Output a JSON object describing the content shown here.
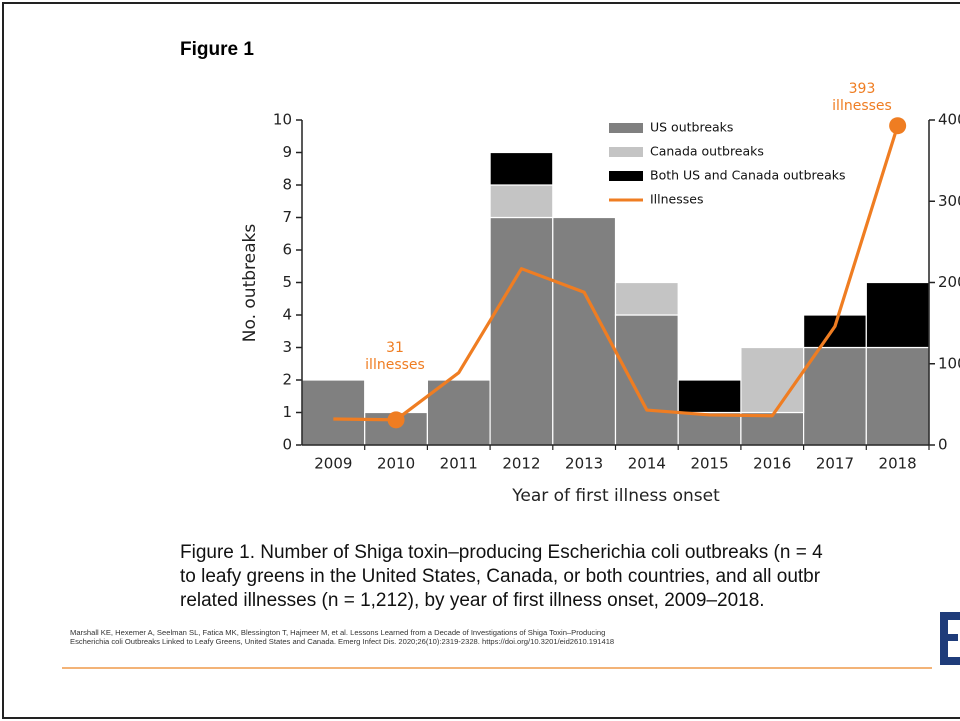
{
  "figure_label": "Figure 1",
  "chart_data": {
    "type": "bar",
    "stacked": true,
    "xlabel": "Year of first illness onset",
    "ylabel": "No. outbreaks",
    "categories": [
      "2009",
      "2010",
      "2011",
      "2012",
      "2013",
      "2014",
      "2015",
      "2016",
      "2017",
      "2018"
    ],
    "series": [
      {
        "name": "US outbreaks",
        "color": "#808080",
        "values": [
          2,
          1,
          2,
          7,
          7,
          4,
          1,
          1,
          3,
          3
        ]
      },
      {
        "name": "Canada outbreaks",
        "color": "#c4c4c4",
        "values": [
          0,
          0,
          0,
          1,
          0,
          1,
          0,
          2,
          0,
          0
        ]
      },
      {
        "name": "Both US and Canada outbreaks",
        "color": "#000000",
        "values": [
          0,
          0,
          0,
          1,
          0,
          0,
          1,
          0,
          1,
          2
        ]
      },
      {
        "name": "Illnesses",
        "type": "line",
        "axis": "y2",
        "color": "#ef7d22",
        "values": [
          32,
          31,
          89,
          217,
          188,
          43,
          37,
          36,
          146,
          393
        ]
      }
    ],
    "ylim": [
      0,
      10
    ],
    "yticks": [
      0,
      1,
      2,
      3,
      4,
      5,
      6,
      7,
      8,
      9,
      10
    ],
    "y2lim": [
      0,
      400
    ],
    "y2ticks": [
      0,
      100,
      200,
      300,
      400
    ],
    "annotations": [
      [
        "31",
        "illnesses"
      ],
      [
        "393",
        "illnesses"
      ]
    ],
    "legend": "upper right",
    "grid": false
  },
  "caption": [
    "Figure 1. Number of Shiga toxin–producing Escherichia coli outbreaks (n = 4",
    "to leafy greens in the United States, Canada, or both countries, and all outbr",
    "related illnesses (n = 1,212), by year of first illness onset, 2009–2018."
  ],
  "citation": [
    "Marshall KE, Hexemer A, Seelman SL, Fatica MK, Blessington T, Hajmeer M, et al. Lessons Learned from a Decade of Investigations  of Shiga Toxin–Producing",
    "Escherichia coli Outbreaks  Linked to Leafy Greens, United States and Canada. Emerg Infect Dis. 2020;26(10):2319-2328.  https://doi.org/10.3201/eid2610.191418"
  ]
}
